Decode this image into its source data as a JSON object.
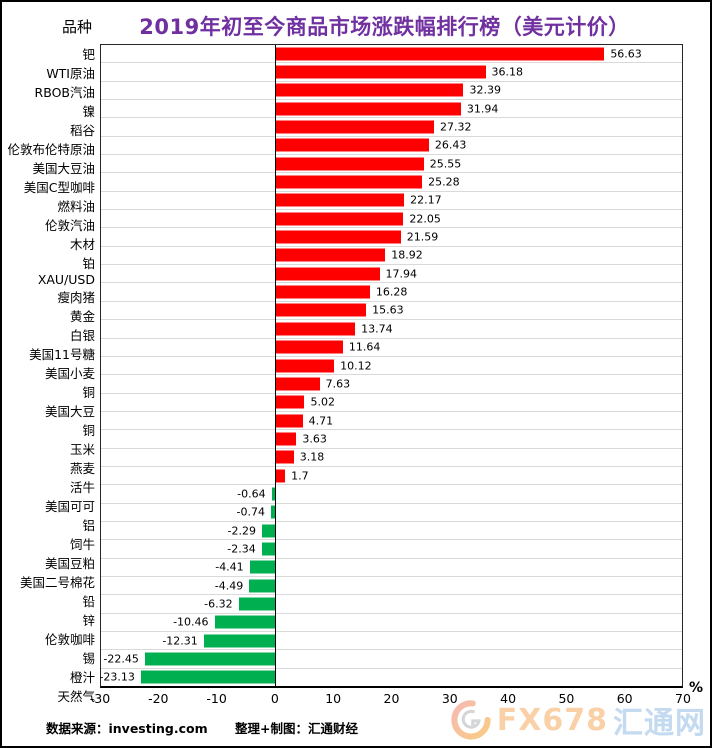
{
  "header": {
    "column_label": "品种",
    "title": "2019年初至今商品市场涨跌幅排行榜（美元计价）",
    "title_color": "#7030A0"
  },
  "chart_data": {
    "type": "bar",
    "orientation": "horizontal",
    "categories": [
      "钯",
      "WTI原油",
      "RBOB汽油",
      "镍",
      "稻谷",
      "伦敦布伦特原油",
      "美国大豆油",
      "美国C型咖啡",
      "燃料油",
      "伦敦汽油",
      "木材",
      "铂",
      "XAU/USD",
      "瘦肉猪",
      "黄金",
      "白银",
      "美国11号糖",
      "美国小麦",
      "铜",
      "美国大豆",
      "铜",
      "玉米",
      "燕麦",
      "活牛",
      "美国可可",
      "铝",
      "饲牛",
      "美国豆粕",
      "美国二号棉花",
      "铅",
      "锌",
      "伦敦咖啡",
      "锡",
      "橙汁",
      "天然气"
    ],
    "values": [
      56.63,
      36.18,
      32.39,
      31.94,
      27.32,
      26.43,
      25.55,
      25.28,
      22.17,
      22.05,
      21.59,
      18.92,
      17.94,
      16.28,
      15.63,
      13.74,
      11.64,
      10.12,
      7.63,
      5.02,
      4.71,
      3.63,
      3.18,
      1.7,
      -0.64,
      -0.74,
      -2.29,
      -2.34,
      -4.41,
      -4.49,
      -6.32,
      -10.46,
      -12.31,
      -22.45,
      -23.13
    ],
    "value_labels": [
      "56.63",
      "36.18",
      "32.39",
      "31.94",
      "27.32",
      "26.43",
      "25.55",
      "25.28",
      "22.17",
      "22.05",
      "21.59",
      "18.92",
      "17.94",
      "16.28",
      "15.63",
      "13.74",
      "11.64",
      "10.12",
      "7.63",
      "5.02",
      "4.71",
      "3.63",
      "3.18",
      "1.7",
      "-0.64",
      "-0.74",
      "-2.29",
      "-2.34",
      "-4.41",
      "-4.49",
      "-6.32",
      "-10.46",
      "-12.31",
      "-22.45",
      "-23.13"
    ],
    "xlim": [
      -30,
      70
    ],
    "x_ticks": [
      -30,
      -20,
      -10,
      0,
      10,
      20,
      30,
      40,
      50,
      60,
      70
    ],
    "x_unit": "%",
    "grid": true,
    "legend": "none",
    "positive_color": "#FF0000",
    "negative_color": "#00B050",
    "gridline_color": "#D9D9D9"
  },
  "footer": {
    "source": "数据来源：investing.com",
    "credit": "整理+制图：汇通财经"
  },
  "watermark": {
    "brand": "FX678",
    "site": "汇通网"
  }
}
